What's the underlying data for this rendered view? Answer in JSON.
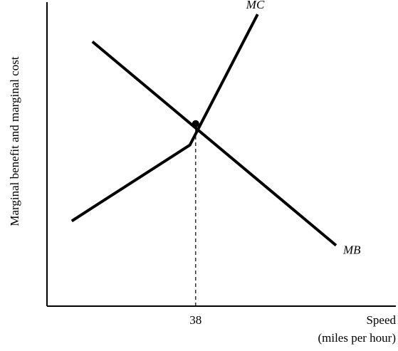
{
  "chart_data": {
    "type": "line",
    "xlabel": "Speed",
    "xlabel_unit": "(miles per hour)",
    "ylabel": "Marginal benefit and marginal cost",
    "x_ticks": [
      {
        "value": 38,
        "label": "38"
      }
    ],
    "xlim": [
      20,
      60
    ],
    "ylim": [
      0,
      100
    ],
    "series": [
      {
        "name": "MC",
        "label": "MC",
        "label_style": "italic",
        "points": [
          {
            "x": 23.0,
            "y": 28
          },
          {
            "x": 37.3,
            "y": 53
          },
          {
            "x": 45.5,
            "y": 96
          }
        ]
      },
      {
        "name": "MB",
        "label": "MB",
        "label_style": "italic",
        "points": [
          {
            "x": 25.5,
            "y": 87
          },
          {
            "x": 55.0,
            "y": 20
          }
        ]
      }
    ],
    "intersection": {
      "x": 38,
      "y": 60,
      "marker": "dot"
    },
    "reference_lines": [
      {
        "type": "vertical",
        "x": 38,
        "from_y": 0,
        "to_y": 60,
        "style": "dashed"
      }
    ],
    "grid": false,
    "legend": "none"
  }
}
